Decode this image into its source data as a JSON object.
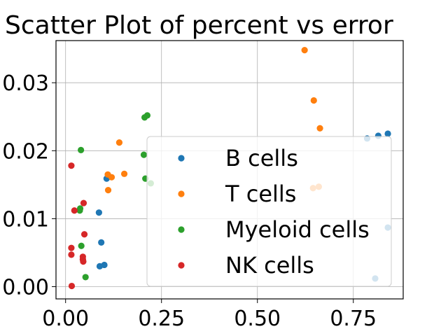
{
  "chart_data": {
    "type": "scatter",
    "title": "Scatter Plot of percent vs error",
    "xlabel": "",
    "ylabel": "",
    "xlim": [
      -0.025,
      0.88
    ],
    "ylim": [
      -0.0018,
      0.0362
    ],
    "xticks": [
      0.0,
      0.25,
      0.5,
      0.75
    ],
    "xtick_labels": [
      "0.00",
      "0.25",
      "0.50",
      "0.75"
    ],
    "yticks": [
      0.0,
      0.01,
      0.02,
      0.03
    ],
    "ytick_labels": [
      "0.00",
      "0.01",
      "0.02",
      "0.03"
    ],
    "grid": true,
    "legend_position": "lower-right",
    "series": [
      {
        "name": "B cells",
        "color": "#1f77b4",
        "points": [
          [
            0.107,
            0.0159
          ],
          [
            0.087,
            0.0109
          ],
          [
            0.093,
            0.0065
          ],
          [
            0.089,
            0.003
          ],
          [
            0.101,
            0.0032
          ],
          [
            0.815,
            0.0222
          ],
          [
            0.84,
            0.0225
          ],
          [
            0.786,
            0.0218
          ],
          [
            0.84,
            0.0087
          ],
          [
            0.807,
            0.0012
          ]
        ]
      },
      {
        "name": "T cells",
        "color": "#ff7f0e",
        "points": [
          [
            0.623,
            0.0348
          ],
          [
            0.647,
            0.0274
          ],
          [
            0.663,
            0.0233
          ],
          [
            0.14,
            0.0212
          ],
          [
            0.153,
            0.0166
          ],
          [
            0.11,
            0.0165
          ],
          [
            0.12,
            0.0161
          ],
          [
            0.111,
            0.0142
          ],
          [
            0.645,
            0.0145
          ],
          [
            0.66,
            0.0147
          ]
        ]
      },
      {
        "name": "Myeloid cells",
        "color": "#2ca02c",
        "points": [
          [
            0.213,
            0.0252
          ],
          [
            0.206,
            0.0249
          ],
          [
            0.04,
            0.0201
          ],
          [
            0.204,
            0.0194
          ],
          [
            0.208,
            0.0159
          ],
          [
            0.222,
            0.0152
          ],
          [
            0.038,
            0.0115
          ],
          [
            0.037,
            0.0112
          ],
          [
            0.041,
            0.006
          ],
          [
            0.052,
            0.0014
          ]
        ]
      },
      {
        "name": "NK cells",
        "color": "#d62728",
        "points": [
          [
            0.015,
            0.0178
          ],
          [
            0.047,
            0.0123
          ],
          [
            0.023,
            0.0112
          ],
          [
            0.049,
            0.0077
          ],
          [
            0.015,
            0.0057
          ],
          [
            0.015,
            0.0047
          ],
          [
            0.045,
            0.0044
          ],
          [
            0.045,
            0.004
          ],
          [
            0.046,
            0.0037
          ],
          [
            0.016,
            0.0001
          ]
        ]
      }
    ]
  }
}
